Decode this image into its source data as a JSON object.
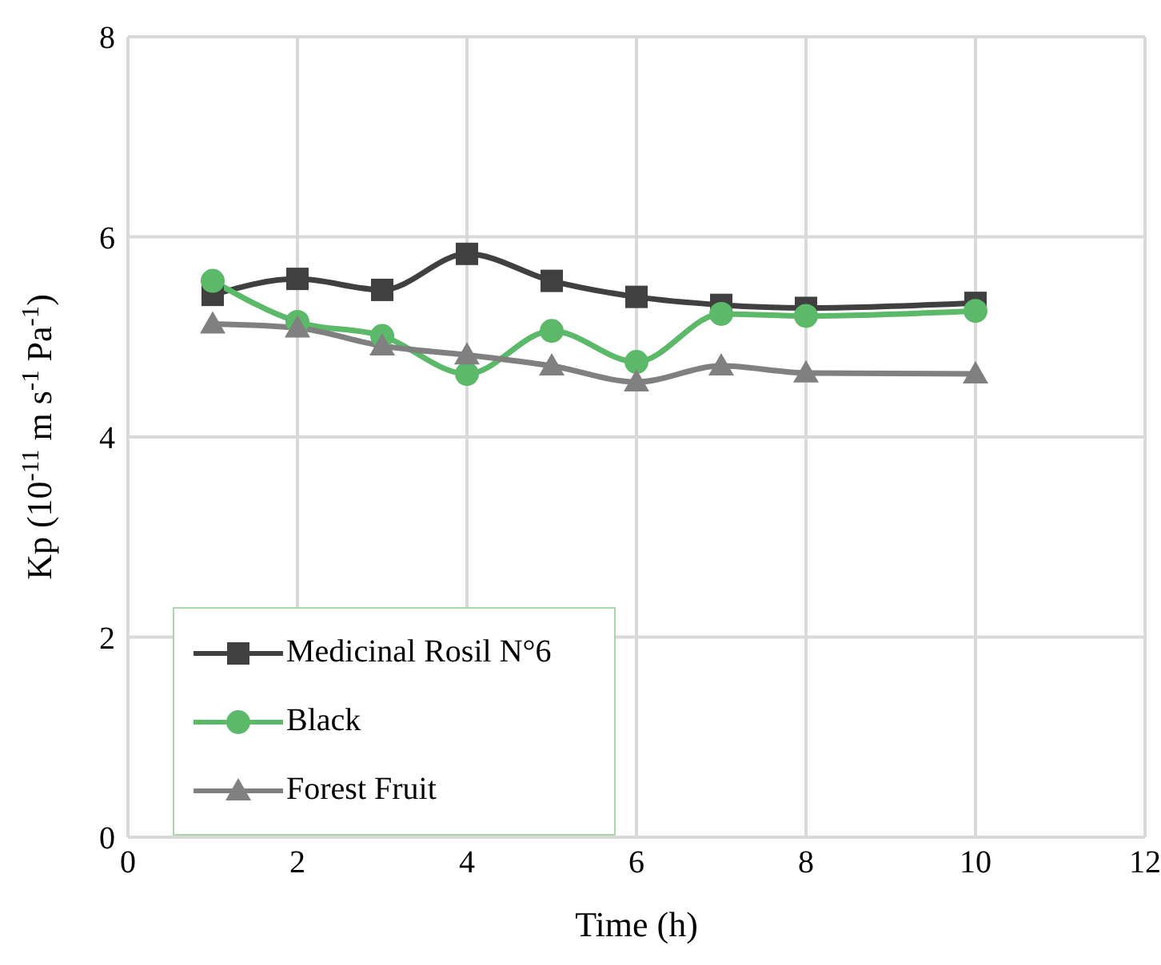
{
  "chart_data": {
    "type": "line",
    "xlabel": "Time (h)",
    "ylabel": "Kp (10$^{-11}$ m s$^{-1}$ Pa$^{-1}$)",
    "x": [
      1,
      2,
      3,
      4,
      5,
      6,
      7,
      8,
      10
    ],
    "series": [
      {
        "name": "Medicinal Rosil N°6",
        "color": "#404040",
        "marker": "square",
        "values": [
          5.42,
          5.58,
          5.47,
          5.83,
          5.56,
          5.4,
          5.32,
          5.29,
          5.34
        ]
      },
      {
        "name": "Black",
        "color": "#5cb96a",
        "marker": "circle",
        "values": [
          5.56,
          5.15,
          5.01,
          4.63,
          5.06,
          4.75,
          5.23,
          5.21,
          5.26
        ]
      },
      {
        "name": "Forest Fruit",
        "color": "#808080",
        "marker": "triangle",
        "values": [
          5.13,
          5.09,
          4.91,
          4.82,
          4.71,
          4.55,
          4.71,
          4.64,
          4.63
        ]
      }
    ],
    "xlim": [
      0,
      12
    ],
    "xticks": [
      0,
      2,
      4,
      6,
      8,
      10,
      12
    ],
    "ylim": [
      0,
      8
    ],
    "yticks": [
      0,
      2,
      4,
      6,
      8
    ],
    "grid": true,
    "legend": "bottom left",
    "line_style": "solid"
  }
}
